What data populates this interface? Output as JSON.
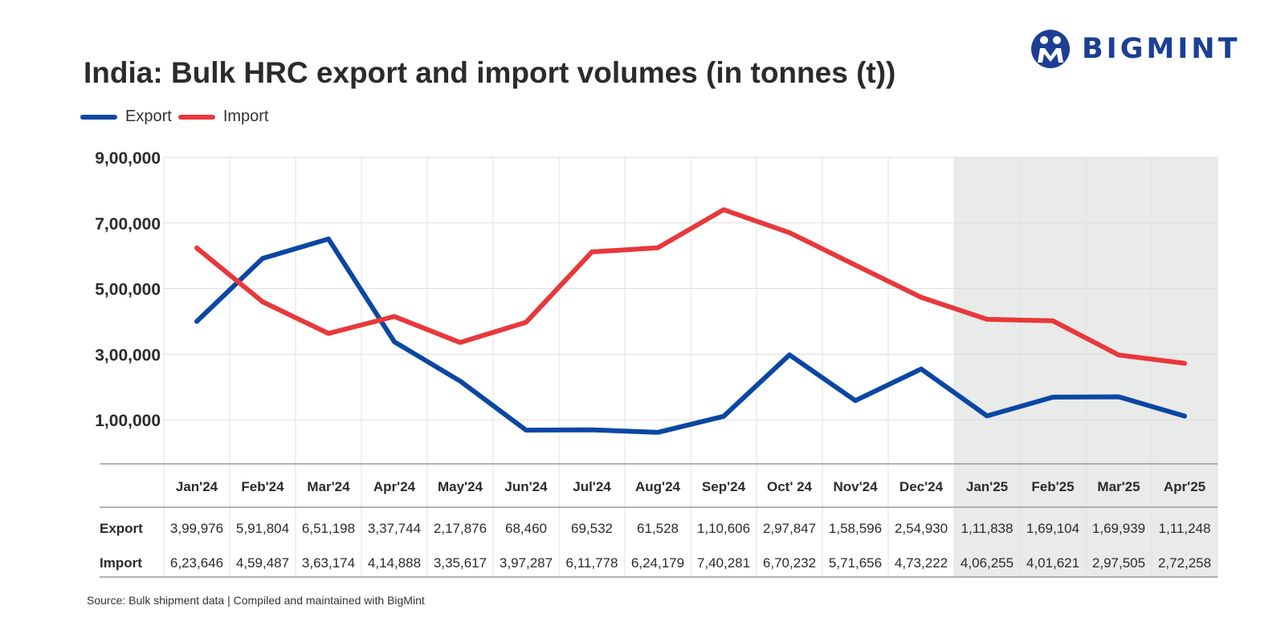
{
  "brand": {
    "name": "BIGMINT",
    "logo_mark": "M",
    "color": "#1c3f94"
  },
  "chart_data": {
    "type": "line",
    "title": "India: Bulk HRC export and import volumes (in tonnes (t))",
    "categories": [
      "Jan'24",
      "Feb'24",
      "Mar'24",
      "Apr'24",
      "May'24",
      "Jun'24",
      "Jul'24",
      "Aug'24",
      "Sep'24",
      "Oct' 24",
      "Nov'24",
      "Dec'24",
      "Jan'25",
      "Feb'25",
      "Mar'25",
      "Apr'25"
    ],
    "series": [
      {
        "name": "Export",
        "color": "#0a47a3",
        "values": [
          399976,
          591804,
          651198,
          337744,
          217876,
          68460,
          69532,
          61528,
          110606,
          297847,
          158596,
          254930,
          111838,
          169104,
          169939,
          111248
        ],
        "labels": [
          "3,99,976",
          "5,91,804",
          "6,51,198",
          "3,37,744",
          "2,17,876",
          "68,460",
          "69,532",
          "61,528",
          "1,10,606",
          "2,97,847",
          "1,58,596",
          "2,54,930",
          "1,11,838",
          "1,69,104",
          "1,69,939",
          "1,11,248"
        ]
      },
      {
        "name": "Import",
        "color": "#e8383b",
        "values": [
          623646,
          459487,
          363174,
          414888,
          335617,
          397287,
          611778,
          624179,
          740281,
          670232,
          571656,
          473222,
          406255,
          401621,
          297505,
          272258
        ],
        "labels": [
          "6,23,646",
          "4,59,487",
          "3,63,174",
          "4,14,888",
          "3,35,617",
          "3,97,287",
          "6,11,778",
          "6,24,179",
          "7,40,281",
          "6,70,232",
          "5,71,656",
          "4,73,222",
          "4,06,255",
          "4,01,621",
          "2,97,505",
          "2,72,258"
        ]
      }
    ],
    "ylim": [
      0,
      900000
    ],
    "y_ticks": [
      100000,
      300000,
      500000,
      700000,
      900000
    ],
    "y_tick_labels": [
      "1,00,000",
      "3,00,000",
      "5,00,000",
      "7,00,000",
      "9,00,000"
    ],
    "shaded_categories": [
      "Jan'25",
      "Feb'25",
      "Mar'25",
      "Apr'25"
    ],
    "shade_color": "#e9eaea",
    "table_row_labels": [
      "Export",
      "Import"
    ],
    "legend_placement": "top-left",
    "grid": true
  },
  "source": "Source: Bulk shipment data | Compiled and maintained with BigMint"
}
